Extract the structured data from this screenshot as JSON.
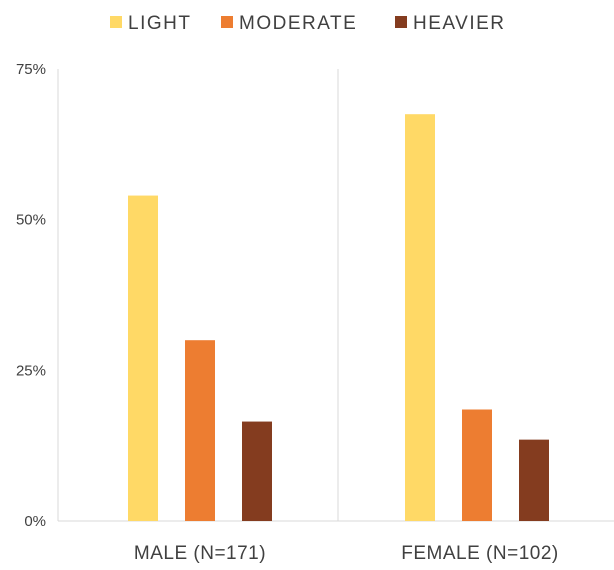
{
  "chart_data": {
    "type": "bar",
    "categories": [
      "MALE (N=171)",
      "FEMALE (N=102)"
    ],
    "series": [
      {
        "name": "LIGHT",
        "values": [
          54,
          67.5
        ],
        "color": "#FFD966"
      },
      {
        "name": "MODERATE",
        "values": [
          30,
          18.5
        ],
        "color": "#ED7D31"
      },
      {
        "name": "HEAVIER",
        "values": [
          16.5,
          13.5
        ],
        "color": "#843C1F"
      }
    ],
    "y_ticks": [
      "0%",
      "25%",
      "50%",
      "75%"
    ],
    "y_tick_values": [
      0,
      25,
      50,
      75
    ],
    "ylim": [
      0,
      75
    ],
    "legend_position": "top",
    "grid": false,
    "colors": {
      "axis": "#D9D9D9",
      "text": "#404040"
    }
  }
}
